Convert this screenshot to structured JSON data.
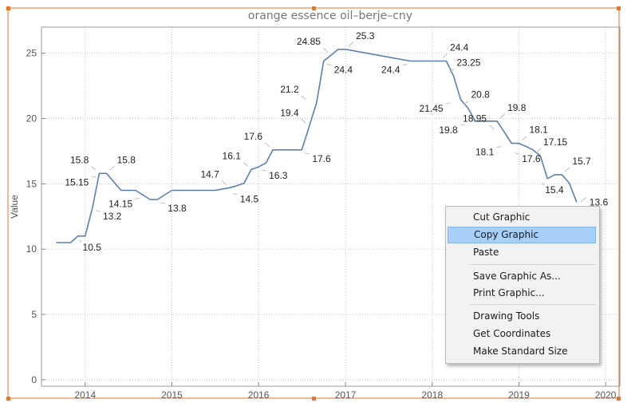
{
  "chart_data": {
    "type": "line",
    "title": "orange essence oil–berje–cny",
    "xlabel": "",
    "ylabel": "Value",
    "x_tick_labels": [
      "2014",
      "2015",
      "2016",
      "2017",
      "2018",
      "2019",
      "2020"
    ],
    "y_tick_labels": [
      "0",
      "5",
      "10",
      "15",
      "20",
      "25"
    ],
    "xlim": [
      "2013-07-01",
      "2020-03-01"
    ],
    "ylim": [
      -0.5,
      27
    ],
    "grid": true,
    "line_color": "#5b7fb5",
    "series": [
      {
        "x": [
          "2013-09-01",
          "2013-10-01",
          "2013-11-01",
          "2013-12-01",
          "2014-01-01",
          "2014-02-01",
          "2014-03-01",
          "2014-04-01",
          "2014-05-01",
          "2014-06-01",
          "2014-07-01",
          "2014-08-01",
          "2014-09-01",
          "2014-10-01",
          "2014-11-01",
          "2015-01-01",
          "2015-03-01",
          "2015-05-01",
          "2015-07-01",
          "2015-09-01",
          "2015-10-01",
          "2015-11-01",
          "2015-12-01",
          "2016-01-01",
          "2016-02-01",
          "2016-03-01",
          "2016-05-01",
          "2016-07-01",
          "2016-08-01",
          "2016-09-01",
          "2016-10-01",
          "2016-11-01",
          "2016-12-01",
          "2017-01-01",
          "2017-10-01",
          "2018-01-01",
          "2018-03-01",
          "2018-04-01",
          "2018-05-01",
          "2018-06-01",
          "2018-07-01",
          "2018-08-01",
          "2018-09-01",
          "2018-10-01",
          "2018-11-01",
          "2018-12-01",
          "2019-01-01",
          "2019-02-01",
          "2019-03-01",
          "2019-04-01",
          "2019-05-01",
          "2019-06-01",
          "2019-07-01",
          "2019-08-01",
          "2019-09-01"
        ],
        "y": [
          10.5,
          10.5,
          10.5,
          11,
          11,
          13.2,
          15.8,
          15.8,
          15.15,
          14.5,
          14.5,
          14.5,
          14.15,
          13.8,
          13.8,
          14.5,
          14.5,
          14.5,
          14.5,
          14.7,
          14.85,
          15.05,
          16.1,
          16.3,
          16.6,
          17.6,
          17.6,
          17.6,
          19.4,
          21.2,
          24.4,
          24.85,
          25.3,
          25.3,
          24.4,
          24.4,
          24.4,
          23.25,
          21.45,
          20.8,
          19.8,
          19.8,
          19.8,
          19.8,
          18.95,
          18.1,
          18.1,
          17.85,
          17.6,
          17.15,
          15.4,
          15.7,
          15.7,
          15.05,
          13.6
        ]
      }
    ],
    "data_labels": [
      {
        "text": "10.5",
        "x": "2013-12-01",
        "y": 11,
        "pos": "below"
      },
      {
        "text": "15.8",
        "x": "2014-03-01",
        "y": 15.8,
        "pos": "upper-left"
      },
      {
        "text": "15.15",
        "x": "2014-03-01",
        "y": 15.8,
        "pos": "lower-left"
      },
      {
        "text": "13.2",
        "x": "2014-02-01",
        "y": 13.2,
        "pos": "lower-right"
      },
      {
        "text": "15.8",
        "x": "2014-04-01",
        "y": 15.8,
        "pos": "upper-right"
      },
      {
        "text": "14.15",
        "x": "2014-09-01",
        "y": 14.15,
        "pos": "lower-left"
      },
      {
        "text": "13.8",
        "x": "2014-11-01",
        "y": 13.8,
        "pos": "lower-right"
      },
      {
        "text": "14.7",
        "x": "2015-09-01",
        "y": 14.7,
        "pos": "upper-left"
      },
      {
        "text": "14.5",
        "x": "2015-09-01",
        "y": 14.5,
        "pos": "lower-right"
      },
      {
        "text": "16.1",
        "x": "2015-12-01",
        "y": 16.1,
        "pos": "upper-left"
      },
      {
        "text": "17.6",
        "x": "2016-03-01",
        "y": 17.6,
        "pos": "upper-left"
      },
      {
        "text": "16.3",
        "x": "2016-01-01",
        "y": 16.3,
        "pos": "lower-right"
      },
      {
        "text": "19.4",
        "x": "2016-08-01",
        "y": 19.4,
        "pos": "upper-left"
      },
      {
        "text": "21.2",
        "x": "2016-08-01",
        "y": 21.2,
        "pos": "upper-left"
      },
      {
        "text": "17.6",
        "x": "2016-07-01",
        "y": 17.6,
        "pos": "lower-right"
      },
      {
        "text": "24.85",
        "x": "2016-11-01",
        "y": 24.85,
        "pos": "upper-left"
      },
      {
        "text": "24.4",
        "x": "2016-10-01",
        "y": 24.4,
        "pos": "lower-right"
      },
      {
        "text": "25.3",
        "x": "2017-01-01",
        "y": 25.3,
        "pos": "upper-right"
      },
      {
        "text": "24.4",
        "x": "2017-10-01",
        "y": 24.4,
        "pos": "lower-left"
      },
      {
        "text": "24.4",
        "x": "2018-02-01",
        "y": 24.4,
        "pos": "upper-right"
      },
      {
        "text": "23.25",
        "x": "2018-03-01",
        "y": 23.25,
        "pos": "upper-right"
      },
      {
        "text": "21.45",
        "x": "2018-04-01",
        "y": 21.45,
        "pos": "lower-left"
      },
      {
        "text": "20.8",
        "x": "2018-05-01",
        "y": 20.8,
        "pos": "upper-right"
      },
      {
        "text": "19.8",
        "x": "2018-06-01",
        "y": 19.8,
        "pos": "lower-left"
      },
      {
        "text": "18.95",
        "x": "2018-10-01",
        "y": 18.95,
        "pos": "upper-left"
      },
      {
        "text": "19.8",
        "x": "2018-10-01",
        "y": 19.8,
        "pos": "upper-right"
      },
      {
        "text": "18.1",
        "x": "2018-11-01",
        "y": 18.1,
        "pos": "lower-left"
      },
      {
        "text": "17.6",
        "x": "2018-12-01",
        "y": 17.6,
        "pos": "lower-right"
      },
      {
        "text": "18.1",
        "x": "2019-01-01",
        "y": 18.1,
        "pos": "upper-right"
      },
      {
        "text": "17.15",
        "x": "2019-03-01",
        "y": 17.15,
        "pos": "upper-right"
      },
      {
        "text": "15.4",
        "x": "2019-04-01",
        "y": 15.4,
        "pos": "below"
      },
      {
        "text": "15.7",
        "x": "2019-07-01",
        "y": 15.7,
        "pos": "upper-right"
      },
      {
        "text": "13.6",
        "x": "2019-09-01",
        "y": 13.6,
        "pos": "right"
      }
    ]
  },
  "context_menu": {
    "items": [
      {
        "label": "Cut Graphic",
        "highlighted": false
      },
      {
        "label": "Copy Graphic",
        "highlighted": true
      },
      {
        "label": "Paste",
        "highlighted": false
      },
      {
        "separator": true
      },
      {
        "label": "Save Graphic As...",
        "highlighted": false
      },
      {
        "label": "Print Graphic...",
        "highlighted": false
      },
      {
        "separator": true
      },
      {
        "label": "Drawing Tools",
        "highlighted": false
      },
      {
        "label": "Get Coordinates",
        "highlighted": false
      },
      {
        "label": "Make Standard Size",
        "highlighted": false
      }
    ]
  },
  "colors": {
    "selection_frame": "#e8742a",
    "menu_highlight": "#a8cff7"
  }
}
